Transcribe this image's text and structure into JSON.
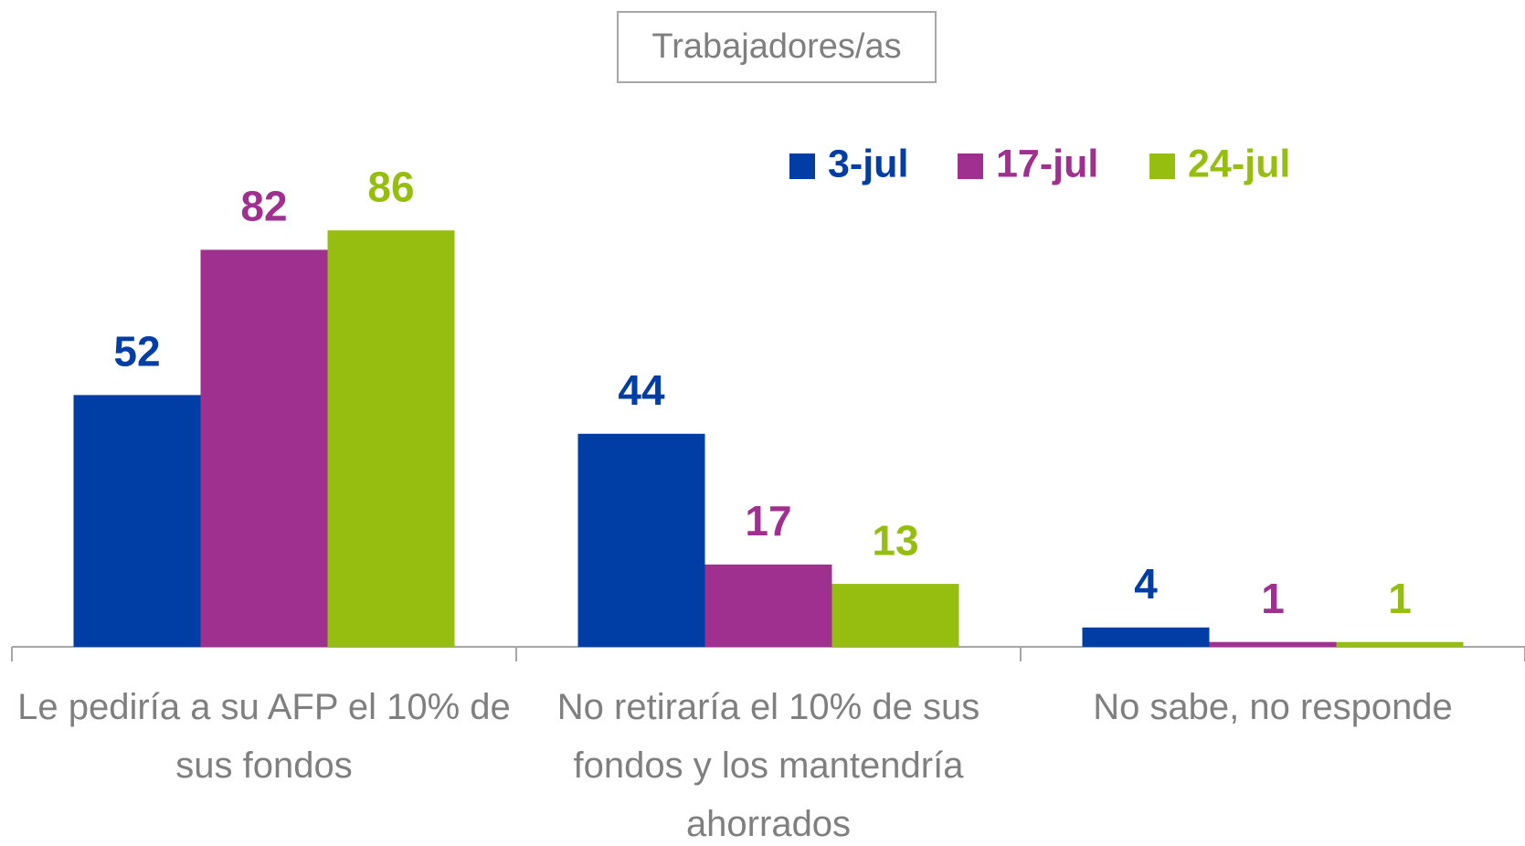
{
  "chart_data": {
    "type": "bar",
    "title": "Trabajadores/as",
    "categories": [
      "Le pediría a su AFP el 10% de sus fondos",
      "No retiraría el 10% de sus fondos y los mantendría ahorrados",
      "No sabe, no responde"
    ],
    "series": [
      {
        "name": "3-jul",
        "color": "#003da5",
        "values": [
          52,
          44,
          4
        ]
      },
      {
        "name": "17-jul",
        "color": "#a0308f",
        "values": [
          82,
          17,
          1
        ]
      },
      {
        "name": "24-jul",
        "color": "#95be10",
        "values": [
          86,
          13,
          1
        ]
      }
    ],
    "legend": "top-right"
  }
}
